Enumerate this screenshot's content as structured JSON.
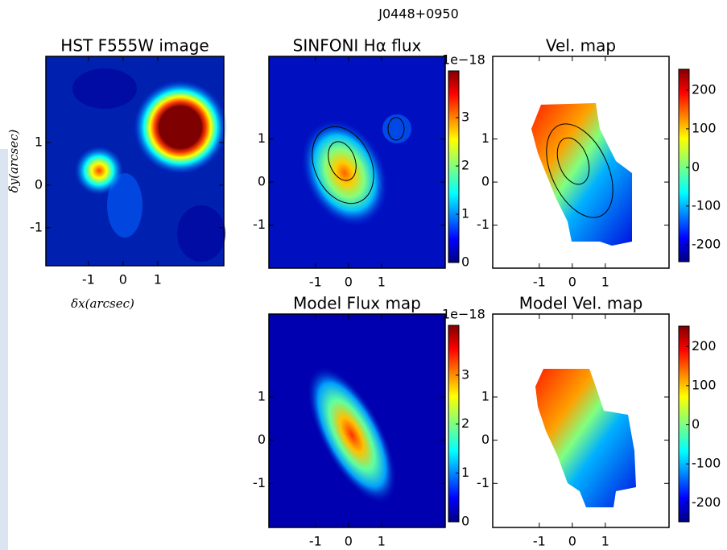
{
  "title": "J0448+0950",
  "panels": [
    {
      "title": "HST F555W image",
      "xlim": [
        -2.23,
        2.91
      ],
      "ylim": [
        -1.89,
        3.02
      ],
      "xticks": [
        -1,
        0,
        1
      ],
      "yticks": [
        -1,
        0,
        1
      ],
      "xlabel": "δx(arcsec)",
      "ylabel": "δy(arcsec)"
    },
    {
      "title": "SINFONI Hα flux",
      "xlim": [
        -2.41,
        2.93
      ],
      "ylim": [
        -2.0,
        2.92
      ],
      "xticks": [
        -1,
        0,
        1
      ],
      "yticks": [
        -1,
        0,
        1
      ],
      "colorbar": {
        "lim": [
          0,
          3.97
        ],
        "ticks": [
          0,
          1,
          2,
          3
        ],
        "offset_label": "1e−18"
      }
    },
    {
      "title": "Vel. map",
      "xlim": [
        -2.41,
        2.93
      ],
      "ylim": [
        -2.0,
        2.92
      ],
      "xticks": [
        -1,
        0,
        1
      ],
      "yticks": [
        -1,
        0,
        1
      ],
      "colorbar": {
        "lim": [
          -244,
          254
        ],
        "ticks": [
          -200,
          -100,
          0,
          100,
          200
        ]
      }
    },
    {
      "title": "Model Flux map",
      "xlim": [
        -2.41,
        2.93
      ],
      "ylim": [
        -2.02,
        2.92
      ],
      "xticks": [
        -1,
        0,
        1
      ],
      "yticks": [
        -1,
        0,
        1
      ],
      "colorbar": {
        "lim": [
          0,
          4.02
        ],
        "ticks": [
          0,
          1,
          2,
          3
        ],
        "offset_label": "1e−18"
      }
    },
    {
      "title": "Model Vel. map",
      "xlim": [
        -2.41,
        2.93
      ],
      "ylim": [
        -2.02,
        2.92
      ],
      "xticks": [
        -1,
        0,
        1
      ],
      "yticks": [
        -1,
        0,
        1
      ],
      "colorbar": {
        "lim": [
          -248,
          252
        ],
        "ticks": [
          -200,
          -100,
          0,
          100,
          200
        ]
      }
    }
  ]
}
